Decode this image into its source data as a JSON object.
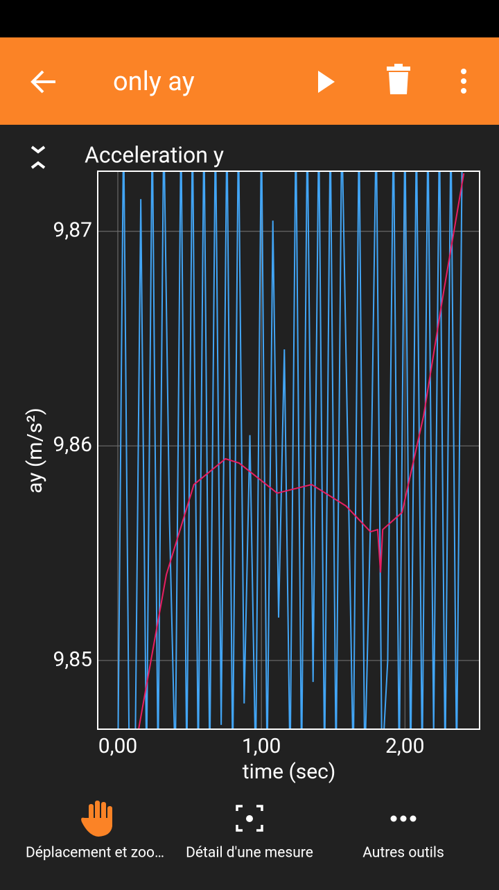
{
  "app_bar": {
    "title": "only ay"
  },
  "chart_data": {
    "type": "line",
    "title": "Acceleration y",
    "x_label": "time (sec)",
    "y_label": "ay (m/s²)",
    "xlim": [
      -0.14,
      2.52
    ],
    "ylim": [
      9.8468,
      9.8728
    ],
    "xticks": [
      {
        "value": 0,
        "label": "0,00"
      },
      {
        "value": 1,
        "label": "1,00"
      },
      {
        "value": 2,
        "label": "2,00"
      }
    ],
    "yticks": [
      {
        "value": 9.85,
        "label": "9,85"
      },
      {
        "value": 9.86,
        "label": "9,86"
      },
      {
        "value": 9.87,
        "label": "9,87"
      }
    ],
    "grid": true,
    "series": [
      {
        "color": "#42a5f5",
        "x": [
          0,
          0.04,
          0.08,
          0.12,
          0.16,
          0.2,
          0.24,
          0.28,
          0.32,
          0.36,
          0.4,
          0.44,
          0.48,
          0.52,
          0.56,
          0.6,
          0.64,
          0.68,
          0.72,
          0.76,
          0.8,
          0.84,
          0.88,
          0.92,
          0.96,
          1.0,
          1.04,
          1.08,
          1.12,
          1.16,
          1.2,
          1.24,
          1.28,
          1.32,
          1.36,
          1.4,
          1.44,
          1.48,
          1.52,
          1.56,
          1.6,
          1.64,
          1.68,
          1.72,
          1.76,
          1.8,
          1.84,
          1.88,
          1.92,
          1.96,
          2.0,
          2.04,
          2.08,
          2.12,
          2.16,
          2.2,
          2.24,
          2.28,
          2.32,
          2.36,
          2.4
        ],
        "values": [
          9.845,
          9.875,
          9.845,
          9.845,
          9.8715,
          9.845,
          9.875,
          9.845,
          9.875,
          9.8565,
          9.845,
          9.875,
          9.845,
          9.875,
          9.845,
          9.875,
          9.845,
          9.875,
          9.847,
          9.875,
          9.845,
          9.875,
          9.848,
          9.8605,
          9.845,
          9.875,
          9.845,
          9.8705,
          9.852,
          9.8645,
          9.845,
          9.875,
          9.845,
          9.875,
          9.849,
          9.875,
          9.845,
          9.875,
          9.845,
          9.875,
          9.8605,
          9.845,
          9.875,
          9.845,
          9.8565,
          9.875,
          9.845,
          9.85,
          9.875,
          9.845,
          9.875,
          9.845,
          9.875,
          9.845,
          9.875,
          9.8465,
          9.875,
          9.845,
          9.875,
          9.845,
          9.875
        ]
      },
      {
        "color": "#e91e63",
        "x": [
          0.145,
          0.338,
          0.53,
          0.75,
          0.845,
          1.11,
          1.35,
          1.59,
          1.76,
          1.81,
          1.83,
          1.845,
          1.98,
          2.13,
          2.27,
          2.41
        ],
        "values": [
          9.8468,
          9.854,
          9.8582,
          9.8594,
          9.8592,
          9.8578,
          9.8582,
          9.8572,
          9.856,
          9.8561,
          9.8541,
          9.8561,
          9.8569,
          9.8614,
          9.8672,
          9.8727
        ]
      }
    ]
  },
  "toolbar": {
    "items": [
      "Déplacement et zoo…",
      "Détail d'une mesure",
      "Autres outils"
    ]
  }
}
